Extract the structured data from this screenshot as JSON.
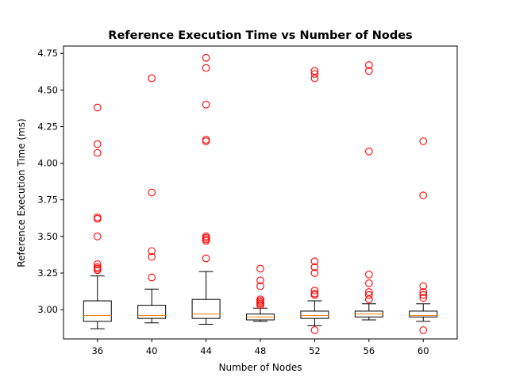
{
  "chart_data": {
    "type": "box",
    "title": "Reference Execution Time vs Number of Nodes",
    "xlabel": "Number of Nodes",
    "ylabel": "Reference Execution Time (ms)",
    "categories": [
      "36",
      "40",
      "44",
      "48",
      "52",
      "56",
      "60"
    ],
    "ylim": [
      2.8,
      4.8
    ],
    "yticks": [
      3.0,
      3.25,
      3.5,
      3.75,
      4.0,
      4.25,
      4.5,
      4.75
    ],
    "ytick_labels": [
      "3.00",
      "3.25",
      "3.50",
      "3.75",
      "4.00",
      "4.25",
      "4.50",
      "4.75"
    ],
    "grid": false,
    "colors": {
      "box": "#000000",
      "median": "#ff7f0e",
      "outlier": "#ff0000"
    },
    "boxes": [
      {
        "category": "36",
        "whisker_low": 2.87,
        "q1": 2.92,
        "median": 2.96,
        "q3": 3.06,
        "whisker_high": 3.23,
        "outliers": [
          3.27,
          3.28,
          3.29,
          3.31,
          3.5,
          3.62,
          3.63,
          4.07,
          4.13,
          4.38
        ]
      },
      {
        "category": "40",
        "whisker_low": 2.91,
        "q1": 2.94,
        "median": 2.96,
        "q3": 3.03,
        "whisker_high": 3.14,
        "outliers": [
          3.22,
          3.36,
          3.4,
          3.8,
          4.58
        ]
      },
      {
        "category": "44",
        "whisker_low": 2.9,
        "q1": 2.94,
        "median": 2.97,
        "q3": 3.07,
        "whisker_high": 3.26,
        "outliers": [
          3.35,
          3.47,
          3.48,
          3.49,
          3.5,
          4.15,
          4.16,
          4.4,
          4.65,
          4.72
        ]
      },
      {
        "category": "48",
        "whisker_low": 2.92,
        "q1": 2.93,
        "median": 2.95,
        "q3": 2.97,
        "whisker_high": 3.01,
        "outliers": [
          3.03,
          3.04,
          3.05,
          3.06,
          3.07,
          3.16,
          3.2,
          3.28
        ]
      },
      {
        "category": "52",
        "whisker_low": 2.89,
        "q1": 2.94,
        "median": 2.96,
        "q3": 2.99,
        "whisker_high": 3.06,
        "outliers": [
          2.86,
          3.1,
          3.11,
          3.13,
          3.25,
          3.29,
          3.33,
          4.58,
          4.61,
          4.63
        ]
      },
      {
        "category": "56",
        "whisker_low": 2.93,
        "q1": 2.95,
        "median": 2.97,
        "q3": 2.99,
        "whisker_high": 3.04,
        "outliers": [
          3.07,
          3.1,
          3.12,
          3.18,
          3.24,
          4.08,
          4.63,
          4.67
        ]
      },
      {
        "category": "60",
        "whisker_low": 2.92,
        "q1": 2.95,
        "median": 2.96,
        "q3": 2.99,
        "whisker_high": 3.04,
        "outliers": [
          2.86,
          3.08,
          3.1,
          3.12,
          3.16,
          3.78,
          4.15
        ]
      }
    ]
  }
}
